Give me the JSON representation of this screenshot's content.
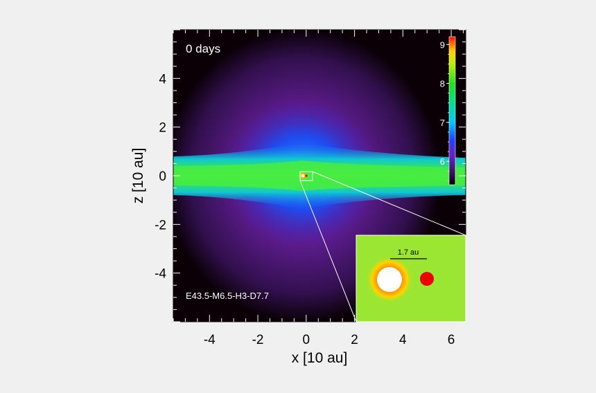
{
  "chart_data": {
    "type": "heatmap",
    "time_label": "0 days",
    "model_label": "E43.5-M6.5-H3-D7.7",
    "xlabel": "x [10 au]",
    "ylabel": "z [10 au]",
    "xlim": [
      -5.5,
      6.6
    ],
    "ylim": [
      -6.0,
      6.0
    ],
    "x_ticks": [
      {
        "value": -4,
        "label": "-4"
      },
      {
        "value": -2,
        "label": "-2"
      },
      {
        "value": 0,
        "label": "0"
      },
      {
        "value": 2,
        "label": "2"
      },
      {
        "value": 4,
        "label": "4"
      },
      {
        "value": 6,
        "label": "6"
      }
    ],
    "y_ticks": [
      {
        "value": 4,
        "label": "4"
      },
      {
        "value": 2,
        "label": "2"
      },
      {
        "value": 0,
        "label": "0"
      },
      {
        "value": -2,
        "label": "-2"
      },
      {
        "value": -4,
        "label": "-4"
      }
    ],
    "colorbar": {
      "range": [
        5.4,
        9.2
      ],
      "ticks": [
        {
          "value": 6,
          "label": "6"
        },
        {
          "value": 7,
          "label": "7"
        },
        {
          "value": 8,
          "label": "8"
        },
        {
          "value": 9,
          "label": "9"
        }
      ]
    },
    "inset": {
      "scale_label": "1.7 au",
      "zoom_box_x": [
        -0.1,
        0.4
      ],
      "zoom_box_y": [
        -0.2,
        0.2
      ]
    }
  },
  "colors": {
    "background": "#f0f0f0",
    "plot_background": "#0a0006",
    "disk_green": "#3de645",
    "envelope_blue": "#1e50ff",
    "halo_purple": "#5a1a8a",
    "star_red": "#ee0000",
    "inset_bg": "#9be632"
  }
}
